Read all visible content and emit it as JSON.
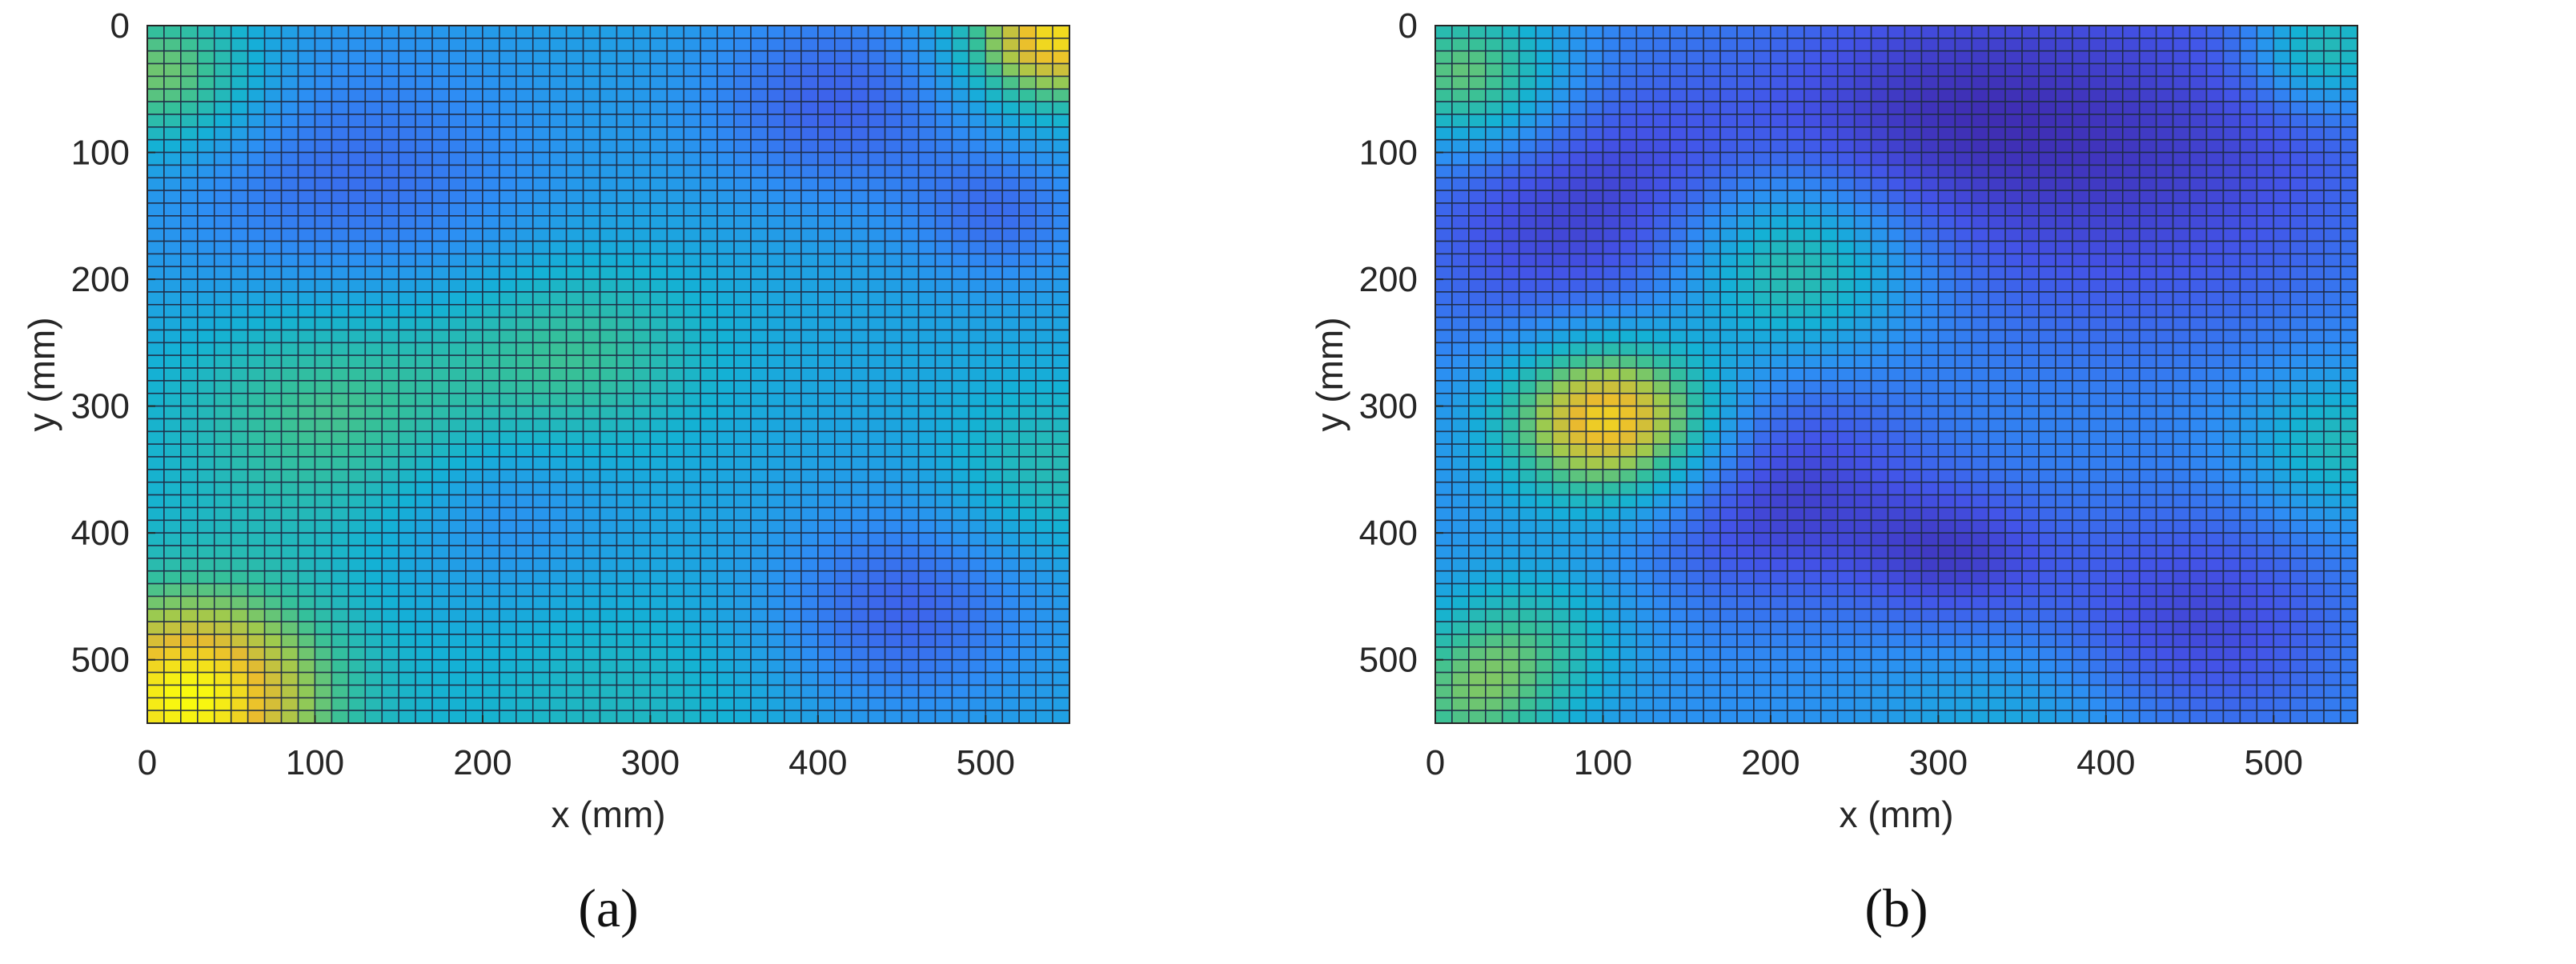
{
  "chart_data": [
    {
      "type": "heatmap",
      "caption": "(a)",
      "xlabel": "x (mm)",
      "ylabel": "y (mm)",
      "xlim": [
        0,
        550
      ],
      "ylim": [
        0,
        550
      ],
      "y_axis_direction": "reversed",
      "xticks": [
        0,
        100,
        200,
        300,
        400,
        500
      ],
      "yticks": [
        0,
        100,
        200,
        300,
        400,
        500
      ],
      "grid": "mesh lines on every cell",
      "colormap": "parula",
      "mesh_cells": [
        55,
        55
      ],
      "cell_size_mm": 10,
      "features": [
        {
          "x": 25,
          "y": 530,
          "level": 1.0,
          "radius": 60
        },
        {
          "x": 540,
          "y": 10,
          "level": 0.95,
          "radius": 35
        },
        {
          "x": 10,
          "y": 40,
          "level": 0.7,
          "radius": 40
        },
        {
          "x": 110,
          "y": 300,
          "level": 0.62,
          "radius": 70
        },
        {
          "x": 255,
          "y": 260,
          "level": 0.58,
          "radius": 55
        },
        {
          "x": 540,
          "y": 350,
          "level": 0.52,
          "radius": 45
        },
        {
          "x": 280,
          "y": 540,
          "level": 0.48,
          "radius": 70
        },
        {
          "x": 120,
          "y": 130,
          "level": 0.2,
          "radius": 90
        },
        {
          "x": 410,
          "y": 60,
          "level": 0.18,
          "radius": 60
        },
        {
          "x": 450,
          "y": 460,
          "level": 0.18,
          "radius": 60
        },
        {
          "x": 510,
          "y": 150,
          "level": 0.22,
          "radius": 40
        },
        {
          "x": 210,
          "y": 380,
          "level": 0.26,
          "radius": 50
        }
      ],
      "base_level": 0.38,
      "colors": {
        "mesh_line": "#1f2a44",
        "colormap_stops": [
          "#3e26a8",
          "#4354e8",
          "#2d8ef4",
          "#14b1d5",
          "#35c09a",
          "#9dca4e",
          "#e9ba2f",
          "#f9fb0e"
        ]
      }
    },
    {
      "type": "heatmap",
      "caption": "(b)",
      "xlabel": "x (mm)",
      "ylabel": "y (mm)",
      "xlim": [
        0,
        550
      ],
      "ylim": [
        0,
        550
      ],
      "y_axis_direction": "reversed",
      "xticks": [
        0,
        100,
        200,
        300,
        400,
        500
      ],
      "yticks": [
        0,
        100,
        200,
        300,
        400,
        500
      ],
      "grid": "mesh lines on every cell",
      "colormap": "parula",
      "mesh_cells": [
        55,
        55
      ],
      "cell_size_mm": 10,
      "features": [
        {
          "x": 105,
          "y": 310,
          "level": 1.0,
          "radius": 45
        },
        {
          "x": 210,
          "y": 190,
          "level": 0.65,
          "radius": 50
        },
        {
          "x": 20,
          "y": 40,
          "level": 0.7,
          "radius": 40
        },
        {
          "x": 530,
          "y": 20,
          "level": 0.6,
          "radius": 30
        },
        {
          "x": 20,
          "y": 530,
          "level": 0.6,
          "radius": 40
        },
        {
          "x": 60,
          "y": 480,
          "level": 0.5,
          "radius": 40
        },
        {
          "x": 540,
          "y": 330,
          "level": 0.52,
          "radius": 40
        },
        {
          "x": 350,
          "y": 560,
          "level": 0.42,
          "radius": 60
        },
        {
          "x": 100,
          "y": 150,
          "level": 0.08,
          "radius": 90
        },
        {
          "x": 420,
          "y": 100,
          "level": 0.08,
          "radius": 110
        },
        {
          "x": 200,
          "y": 370,
          "level": 0.08,
          "radius": 65
        },
        {
          "x": 310,
          "y": 420,
          "level": 0.12,
          "radius": 40
        },
        {
          "x": 450,
          "y": 470,
          "level": 0.1,
          "radius": 70
        },
        {
          "x": 290,
          "y": 60,
          "level": 0.16,
          "radius": 70
        }
      ],
      "base_level": 0.3,
      "colors": {
        "mesh_line": "#1f2a44",
        "colormap_stops": [
          "#3e26a8",
          "#4354e8",
          "#2d8ef4",
          "#14b1d5",
          "#35c09a",
          "#9dca4e",
          "#e9ba2f",
          "#f9fb0e"
        ]
      }
    }
  ]
}
